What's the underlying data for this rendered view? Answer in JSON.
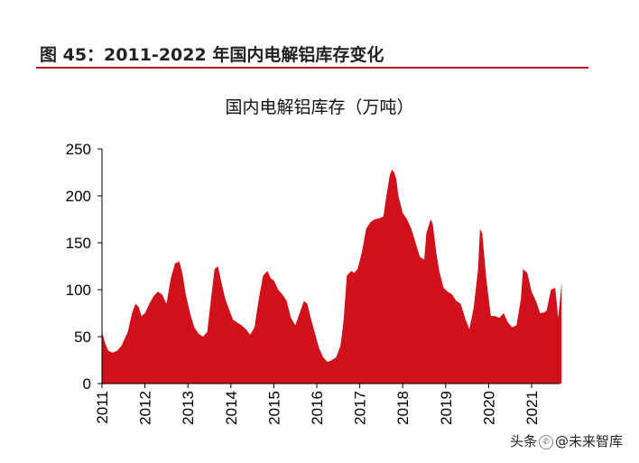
{
  "figure": {
    "title": "图 45：2011-2022 年国内电解铝库存变化"
  },
  "watermark": {
    "text": "头条 @未来智库",
    "icon": "wechat-icon"
  },
  "colors": {
    "accent": "#b5121b",
    "area_fill": "#d0101b"
  },
  "chart_data": {
    "type": "area",
    "title": "国内电解铝库存（万吨）",
    "xlabel": "",
    "ylabel": "万吨",
    "ylim": [
      0,
      250
    ],
    "xlim": [
      2011.0,
      2021.7
    ],
    "yticks": [
      "0",
      "50",
      "100",
      "150",
      "200",
      "250"
    ],
    "xticks": [
      "2011",
      "2012",
      "2013",
      "2014",
      "2015",
      "2016",
      "2017",
      "2018",
      "2019",
      "2020",
      "2021"
    ],
    "grid": false,
    "series": [
      {
        "name": "国内电解铝库存",
        "x": [
          2011.0,
          2011.08,
          2011.15,
          2011.25,
          2011.35,
          2011.45,
          2011.6,
          2011.7,
          2011.78,
          2011.85,
          2011.92,
          2012.0,
          2012.1,
          2012.2,
          2012.3,
          2012.4,
          2012.5,
          2012.6,
          2012.7,
          2012.8,
          2012.87,
          2012.95,
          2013.05,
          2013.15,
          2013.25,
          2013.35,
          2013.45,
          2013.55,
          2013.62,
          2013.7,
          2013.78,
          2013.87,
          2013.95,
          2014.05,
          2014.15,
          2014.25,
          2014.35,
          2014.45,
          2014.55,
          2014.65,
          2014.75,
          2014.85,
          2014.93,
          2015.0,
          2015.1,
          2015.2,
          2015.3,
          2015.4,
          2015.5,
          2015.6,
          2015.7,
          2015.78,
          2015.87,
          2015.95,
          2016.05,
          2016.15,
          2016.25,
          2016.35,
          2016.45,
          2016.55,
          2016.62,
          2016.7,
          2016.8,
          2016.87,
          2016.95,
          2017.05,
          2017.15,
          2017.25,
          2017.35,
          2017.45,
          2017.55,
          2017.62,
          2017.7,
          2017.75,
          2017.8,
          2017.85,
          2017.9,
          2018.0,
          2018.1,
          2018.2,
          2018.3,
          2018.4,
          2018.5,
          2018.55,
          2018.65,
          2018.7,
          2018.78,
          2018.85,
          2018.95,
          2019.05,
          2019.15,
          2019.25,
          2019.35,
          2019.45,
          2019.55,
          2019.65,
          2019.75,
          2019.8,
          2019.85,
          2019.95,
          2020.05,
          2020.15,
          2020.25,
          2020.35,
          2020.45,
          2020.55,
          2020.65,
          2020.75,
          2020.8,
          2020.9,
          2021.0,
          2021.1,
          2021.2,
          2021.3,
          2021.35,
          2021.45,
          2021.55,
          2021.62,
          2021.7
        ],
        "values": [
          55,
          42,
          35,
          33,
          35,
          40,
          55,
          75,
          85,
          82,
          72,
          75,
          85,
          93,
          98,
          95,
          85,
          112,
          128,
          130,
          118,
          95,
          75,
          60,
          53,
          50,
          55,
          95,
          122,
          125,
          108,
          90,
          80,
          68,
          65,
          62,
          58,
          52,
          60,
          90,
          115,
          120,
          112,
          110,
          100,
          95,
          88,
          70,
          62,
          75,
          88,
          85,
          68,
          55,
          38,
          28,
          23,
          25,
          28,
          40,
          65,
          115,
          120,
          118,
          122,
          140,
          165,
          172,
          175,
          176,
          178,
          200,
          222,
          228,
          225,
          218,
          200,
          182,
          175,
          165,
          150,
          135,
          132,
          160,
          175,
          170,
          140,
          120,
          102,
          98,
          95,
          88,
          85,
          70,
          58,
          80,
          120,
          165,
          160,
          110,
          72,
          72,
          70,
          75,
          65,
          60,
          62,
          90,
          122,
          118,
          98,
          88,
          75,
          76,
          78,
          100,
          102,
          70,
          108
        ]
      }
    ]
  }
}
